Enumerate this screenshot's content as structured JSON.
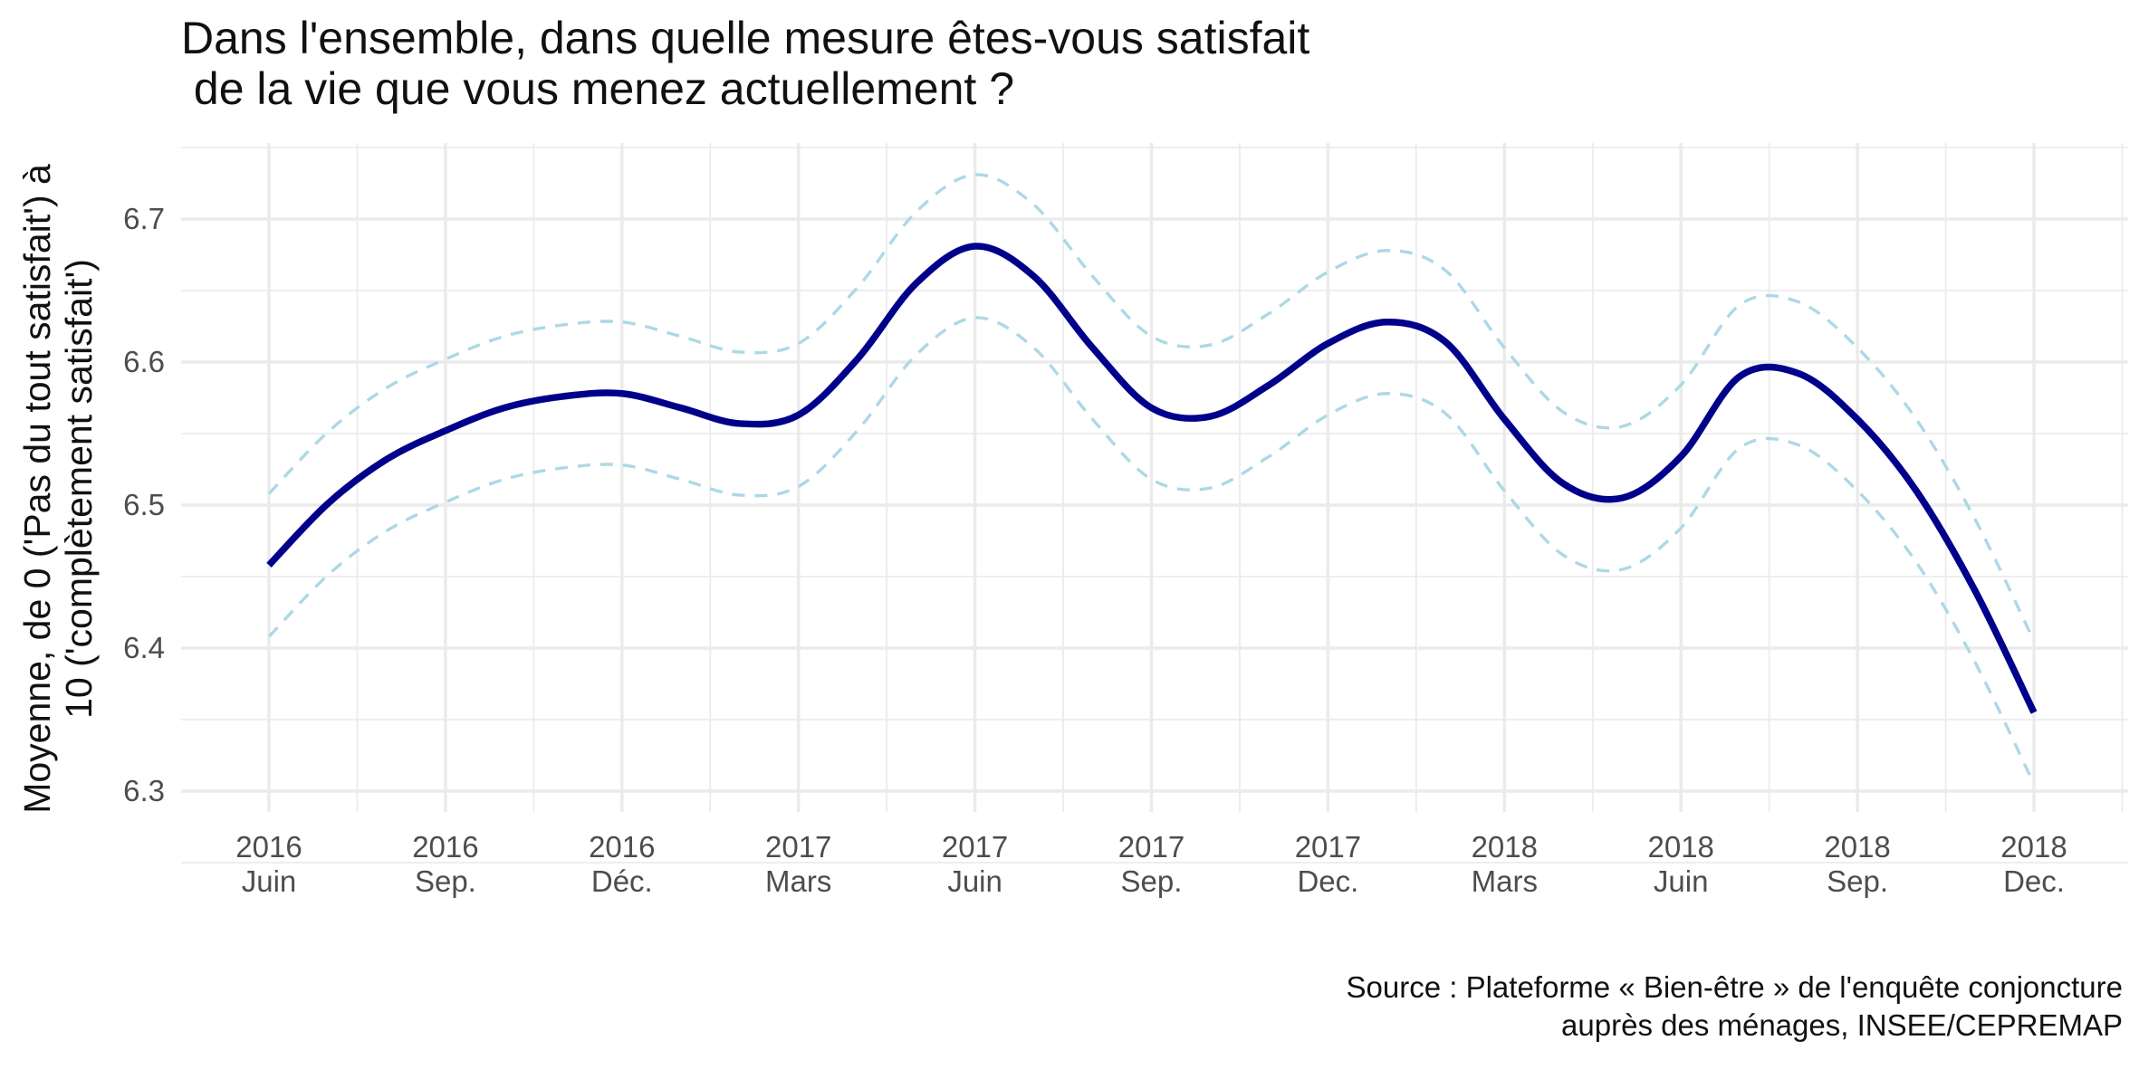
{
  "chart_data": {
    "type": "line",
    "title": "Dans l'ensemble, dans quelle mesure êtes-vous satisfait\n de la vie que vous menez actuellement ?",
    "ylabel": "Moyenne, de 0 ('Pas du tout satisfait') à\n10 ('complètement satisfait')",
    "xlabel": "",
    "caption": "Source : Plateforme « Bien-être » de l'enquête conjoncture\nauprès des ménages, INSEE/CEPREMAP",
    "ylim": [
      6.3,
      6.7
    ],
    "yticks": [
      6.3,
      6.4,
      6.5,
      6.6,
      6.7
    ],
    "xlim": [
      "2016-06",
      "2018-12"
    ],
    "x_ticks": [
      {
        "x": "2016-06",
        "label": "2016\nJuin"
      },
      {
        "x": "2016-09",
        "label": "2016\nSep."
      },
      {
        "x": "2016-12",
        "label": "2016\nDéc."
      },
      {
        "x": "2017-03",
        "label": "2017\nMars"
      },
      {
        "x": "2017-06",
        "label": "2017\nJuin"
      },
      {
        "x": "2017-09",
        "label": "2017\nSep."
      },
      {
        "x": "2017-12",
        "label": "2017\nDec."
      },
      {
        "x": "2018-03",
        "label": "2018\nMars"
      },
      {
        "x": "2018-06",
        "label": "2018\nJuin"
      },
      {
        "x": "2018-09",
        "label": "2018\nSep."
      },
      {
        "x": "2018-12",
        "label": "2018\nDec."
      }
    ],
    "grid": true,
    "legend": "none",
    "x": [
      "2016-06",
      "2016-07",
      "2016-08",
      "2016-09",
      "2016-10",
      "2016-11",
      "2016-12",
      "2017-01",
      "2017-02",
      "2017-03",
      "2017-04",
      "2017-05",
      "2017-06",
      "2017-07",
      "2017-08",
      "2017-09",
      "2017-10",
      "2017-11",
      "2017-12",
      "2018-01",
      "2018-02",
      "2018-03",
      "2018-04",
      "2018-05",
      "2018-06",
      "2018-07",
      "2018-08",
      "2018-09",
      "2018-10",
      "2018-11",
      "2018-12"
    ],
    "series": [
      {
        "role": "mean",
        "color": "#00008B",
        "style": "solid",
        "values": [
          6.458,
          6.501,
          6.532,
          6.552,
          6.568,
          6.576,
          6.578,
          6.568,
          6.557,
          6.563,
          6.602,
          6.655,
          6.681,
          6.66,
          6.61,
          6.568,
          6.562,
          6.584,
          6.613,
          6.628,
          6.614,
          6.56,
          6.515,
          6.505,
          6.534,
          6.59,
          6.592,
          6.56,
          6.51,
          6.44,
          6.355
        ]
      },
      {
        "role": "upper-bound",
        "color": "#ADD8E6",
        "style": "dashed",
        "values": [
          6.508,
          6.551,
          6.582,
          6.602,
          6.618,
          6.626,
          6.628,
          6.618,
          6.607,
          6.613,
          6.652,
          6.705,
          6.731,
          6.71,
          6.66,
          6.618,
          6.612,
          6.634,
          6.663,
          6.678,
          6.664,
          6.61,
          6.565,
          6.555,
          6.584,
          6.64,
          6.642,
          6.61,
          6.56,
          6.49,
          6.405
        ]
      },
      {
        "role": "lower-bound",
        "color": "#ADD8E6",
        "style": "dashed",
        "values": [
          6.408,
          6.451,
          6.482,
          6.502,
          6.518,
          6.526,
          6.528,
          6.518,
          6.507,
          6.513,
          6.552,
          6.605,
          6.631,
          6.61,
          6.56,
          6.518,
          6.512,
          6.534,
          6.563,
          6.578,
          6.564,
          6.51,
          6.465,
          6.455,
          6.484,
          6.54,
          6.542,
          6.51,
          6.46,
          6.39,
          6.305
        ]
      }
    ]
  }
}
